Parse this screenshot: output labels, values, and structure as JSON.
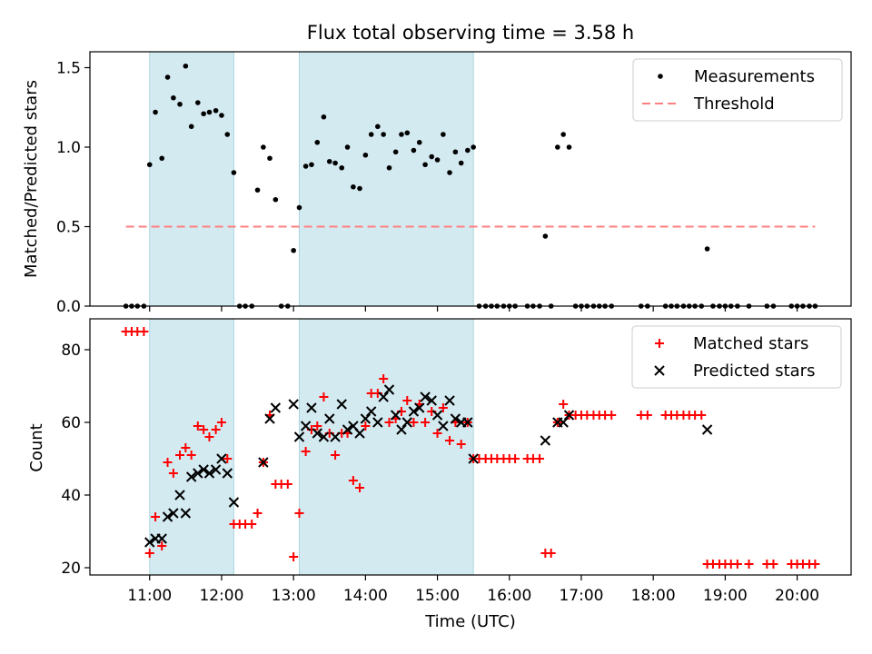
{
  "figure": {
    "title": "Flux total observing time = 3.58 h"
  },
  "chart_data": [
    {
      "type": "scatter",
      "panel": "top",
      "xlabel": "",
      "ylabel": "Matched/Predicted stars",
      "ylim": [
        0,
        1.6
      ],
      "yticks": [
        "0.0",
        "0.5",
        "1.0",
        "1.5"
      ],
      "xlim": [
        10.17,
        20.75
      ],
      "shaded_intervals": [
        [
          11.0,
          12.17
        ],
        [
          13.08,
          15.5
        ]
      ],
      "legend_position": "top-right",
      "series": [
        {
          "name": "Measurements",
          "marker": "dot",
          "color": "#000000",
          "points": [
            [
              10.67,
              0
            ],
            [
              10.75,
              0
            ],
            [
              10.83,
              0
            ],
            [
              10.92,
              0
            ],
            [
              11.0,
              0.89
            ],
            [
              11.08,
              1.22
            ],
            [
              11.17,
              0.93
            ],
            [
              11.25,
              1.44
            ],
            [
              11.33,
              1.31
            ],
            [
              11.42,
              1.27
            ],
            [
              11.5,
              1.51
            ],
            [
              11.58,
              1.13
            ],
            [
              11.67,
              1.28
            ],
            [
              11.75,
              1.21
            ],
            [
              11.83,
              1.22
            ],
            [
              11.92,
              1.23
            ],
            [
              12.0,
              1.2
            ],
            [
              12.08,
              1.08
            ],
            [
              12.17,
              0.84
            ],
            [
              12.25,
              0
            ],
            [
              12.33,
              0
            ],
            [
              12.42,
              0
            ],
            [
              12.5,
              0.73
            ],
            [
              12.58,
              1.0
            ],
            [
              12.67,
              0.93
            ],
            [
              12.75,
              0.67
            ],
            [
              12.83,
              0
            ],
            [
              12.92,
              0
            ],
            [
              13.0,
              0.35
            ],
            [
              13.08,
              0.62
            ],
            [
              13.17,
              0.88
            ],
            [
              13.25,
              0.89
            ],
            [
              13.33,
              1.03
            ],
            [
              13.42,
              1.19
            ],
            [
              13.5,
              0.91
            ],
            [
              13.58,
              0.9
            ],
            [
              13.67,
              0.87
            ],
            [
              13.75,
              1.0
            ],
            [
              13.83,
              0.75
            ],
            [
              13.92,
              0.74
            ],
            [
              14.0,
              0.95
            ],
            [
              14.08,
              1.08
            ],
            [
              14.17,
              1.13
            ],
            [
              14.25,
              1.08
            ],
            [
              14.33,
              0.87
            ],
            [
              14.42,
              0.97
            ],
            [
              14.5,
              1.08
            ],
            [
              14.58,
              1.09
            ],
            [
              14.67,
              0.98
            ],
            [
              14.75,
              1.03
            ],
            [
              14.83,
              0.89
            ],
            [
              14.92,
              0.94
            ],
            [
              15.0,
              0.92
            ],
            [
              15.08,
              1.08
            ],
            [
              15.17,
              0.84
            ],
            [
              15.25,
              0.97
            ],
            [
              15.33,
              0.9
            ],
            [
              15.42,
              0.98
            ],
            [
              15.5,
              1.0
            ],
            [
              15.58,
              0
            ],
            [
              15.67,
              0
            ],
            [
              15.75,
              0
            ],
            [
              15.83,
              0
            ],
            [
              15.92,
              0
            ],
            [
              16.0,
              0
            ],
            [
              16.08,
              0
            ],
            [
              16.25,
              0
            ],
            [
              16.33,
              0
            ],
            [
              16.42,
              0
            ],
            [
              16.5,
              0.44
            ],
            [
              16.58,
              0
            ],
            [
              16.67,
              1.0
            ],
            [
              16.75,
              1.08
            ],
            [
              16.83,
              1.0
            ],
            [
              16.92,
              0
            ],
            [
              17.0,
              0
            ],
            [
              17.08,
              0
            ],
            [
              17.17,
              0
            ],
            [
              17.25,
              0
            ],
            [
              17.33,
              0
            ],
            [
              17.42,
              0
            ],
            [
              17.83,
              0
            ],
            [
              17.92,
              0
            ],
            [
              18.17,
              0
            ],
            [
              18.25,
              0
            ],
            [
              18.33,
              0
            ],
            [
              18.42,
              0
            ],
            [
              18.5,
              0
            ],
            [
              18.58,
              0
            ],
            [
              18.67,
              0
            ],
            [
              18.75,
              0.36
            ],
            [
              18.83,
              0
            ],
            [
              18.92,
              0
            ],
            [
              19.0,
              0
            ],
            [
              19.08,
              0
            ],
            [
              19.17,
              0
            ],
            [
              19.33,
              0
            ],
            [
              19.58,
              0
            ],
            [
              19.67,
              0
            ],
            [
              19.92,
              0
            ],
            [
              20.0,
              0
            ],
            [
              20.08,
              0
            ],
            [
              20.17,
              0
            ],
            [
              20.25,
              0
            ]
          ]
        },
        {
          "name": "Threshold",
          "marker": "dashed-line",
          "color": "#ff7f7f",
          "x": [
            10.67,
            20.25
          ],
          "y": [
            0.5,
            0.5
          ]
        }
      ]
    },
    {
      "type": "scatter",
      "panel": "bottom",
      "xlabel": "Time (UTC)",
      "ylabel": "Count",
      "ylim": [
        18,
        88.5
      ],
      "yticks": [
        "20",
        "40",
        "60",
        "80"
      ],
      "xlim": [
        10.17,
        20.75
      ],
      "xticks": [
        "11:00",
        "12:00",
        "13:00",
        "14:00",
        "15:00",
        "16:00",
        "17:00",
        "18:00",
        "19:00",
        "20:00"
      ],
      "shaded_intervals": [
        [
          11.0,
          12.17
        ],
        [
          13.08,
          15.5
        ]
      ],
      "legend_position": "top-right",
      "series": [
        {
          "name": "Matched stars",
          "marker": "plus",
          "color": "#ff0000",
          "points": [
            [
              10.67,
              85
            ],
            [
              10.75,
              85
            ],
            [
              10.83,
              85
            ],
            [
              10.92,
              85
            ],
            [
              11.0,
              24
            ],
            [
              11.08,
              34
            ],
            [
              11.17,
              26
            ],
            [
              11.25,
              49
            ],
            [
              11.33,
              46
            ],
            [
              11.42,
              51
            ],
            [
              11.5,
              53
            ],
            [
              11.58,
              51
            ],
            [
              11.67,
              59
            ],
            [
              11.75,
              58
            ],
            [
              11.83,
              56
            ],
            [
              11.92,
              58
            ],
            [
              12.0,
              60
            ],
            [
              12.08,
              50
            ],
            [
              12.17,
              32
            ],
            [
              12.25,
              32
            ],
            [
              12.33,
              32
            ],
            [
              12.42,
              32
            ],
            [
              12.5,
              35
            ],
            [
              12.58,
              49
            ],
            [
              12.67,
              62
            ],
            [
              12.75,
              43
            ],
            [
              12.83,
              43
            ],
            [
              12.92,
              43
            ],
            [
              13.0,
              23
            ],
            [
              13.08,
              35
            ],
            [
              13.17,
              52
            ],
            [
              13.25,
              58
            ],
            [
              13.33,
              59
            ],
            [
              13.42,
              67
            ],
            [
              13.5,
              57
            ],
            [
              13.58,
              51
            ],
            [
              13.67,
              57
            ],
            [
              13.75,
              57
            ],
            [
              13.83,
              44
            ],
            [
              13.92,
              42
            ],
            [
              14.0,
              59
            ],
            [
              14.08,
              68
            ],
            [
              14.17,
              68
            ],
            [
              14.25,
              72
            ],
            [
              14.33,
              60
            ],
            [
              14.42,
              61
            ],
            [
              14.5,
              63
            ],
            [
              14.58,
              66
            ],
            [
              14.67,
              60
            ],
            [
              14.75,
              65
            ],
            [
              14.83,
              60
            ],
            [
              14.92,
              63
            ],
            [
              15.0,
              57
            ],
            [
              15.08,
              64
            ],
            [
              15.17,
              55
            ],
            [
              15.25,
              60
            ],
            [
              15.33,
              54
            ],
            [
              15.42,
              60
            ],
            [
              15.5,
              50
            ],
            [
              15.58,
              50
            ],
            [
              15.67,
              50
            ],
            [
              15.75,
              50
            ],
            [
              15.83,
              50
            ],
            [
              15.92,
              50
            ],
            [
              16.0,
              50
            ],
            [
              16.08,
              50
            ],
            [
              16.25,
              50
            ],
            [
              16.33,
              50
            ],
            [
              16.42,
              50
            ],
            [
              16.5,
              24
            ],
            [
              16.58,
              24
            ],
            [
              16.67,
              60
            ],
            [
              16.75,
              65
            ],
            [
              16.83,
              62
            ],
            [
              16.92,
              62
            ],
            [
              17.0,
              62
            ],
            [
              17.08,
              62
            ],
            [
              17.17,
              62
            ],
            [
              17.25,
              62
            ],
            [
              17.33,
              62
            ],
            [
              17.42,
              62
            ],
            [
              17.83,
              62
            ],
            [
              17.92,
              62
            ],
            [
              18.17,
              62
            ],
            [
              18.25,
              62
            ],
            [
              18.33,
              62
            ],
            [
              18.42,
              62
            ],
            [
              18.5,
              62
            ],
            [
              18.58,
              62
            ],
            [
              18.67,
              62
            ],
            [
              18.75,
              21
            ],
            [
              18.83,
              21
            ],
            [
              18.92,
              21
            ],
            [
              19.0,
              21
            ],
            [
              19.08,
              21
            ],
            [
              19.17,
              21
            ],
            [
              19.33,
              21
            ],
            [
              19.58,
              21
            ],
            [
              19.67,
              21
            ],
            [
              19.92,
              21
            ],
            [
              20.0,
              21
            ],
            [
              20.08,
              21
            ],
            [
              20.17,
              21
            ],
            [
              20.25,
              21
            ]
          ]
        },
        {
          "name": "Predicted stars",
          "marker": "x",
          "color": "#000000",
          "points": [
            [
              11.0,
              27
            ],
            [
              11.08,
              28
            ],
            [
              11.17,
              28
            ],
            [
              11.25,
              34
            ],
            [
              11.33,
              35
            ],
            [
              11.42,
              40
            ],
            [
              11.5,
              35
            ],
            [
              11.58,
              45
            ],
            [
              11.67,
              46
            ],
            [
              11.75,
              47
            ],
            [
              11.83,
              46
            ],
            [
              11.92,
              47
            ],
            [
              12.0,
              50
            ],
            [
              12.08,
              46
            ],
            [
              12.17,
              38
            ],
            [
              12.58,
              49
            ],
            [
              12.67,
              61
            ],
            [
              12.75,
              64
            ],
            [
              13.0,
              65
            ],
            [
              13.08,
              56
            ],
            [
              13.17,
              59
            ],
            [
              13.25,
              64
            ],
            [
              13.33,
              57
            ],
            [
              13.42,
              56
            ],
            [
              13.5,
              61
            ],
            [
              13.58,
              56
            ],
            [
              13.67,
              65
            ],
            [
              13.75,
              58
            ],
            [
              13.83,
              59
            ],
            [
              13.92,
              57
            ],
            [
              14.0,
              61
            ],
            [
              14.08,
              63
            ],
            [
              14.17,
              60
            ],
            [
              14.25,
              67
            ],
            [
              14.33,
              69
            ],
            [
              14.42,
              62
            ],
            [
              14.5,
              58
            ],
            [
              14.58,
              60
            ],
            [
              14.67,
              63
            ],
            [
              14.75,
              64
            ],
            [
              14.83,
              67
            ],
            [
              14.92,
              66
            ],
            [
              15.0,
              62
            ],
            [
              15.08,
              59
            ],
            [
              15.17,
              66
            ],
            [
              15.25,
              61
            ],
            [
              15.33,
              60
            ],
            [
              15.42,
              60
            ],
            [
              15.5,
              50
            ],
            [
              16.5,
              55
            ],
            [
              16.67,
              60
            ],
            [
              16.75,
              60
            ],
            [
              16.83,
              62
            ],
            [
              18.75,
              58
            ]
          ]
        }
      ]
    }
  ]
}
